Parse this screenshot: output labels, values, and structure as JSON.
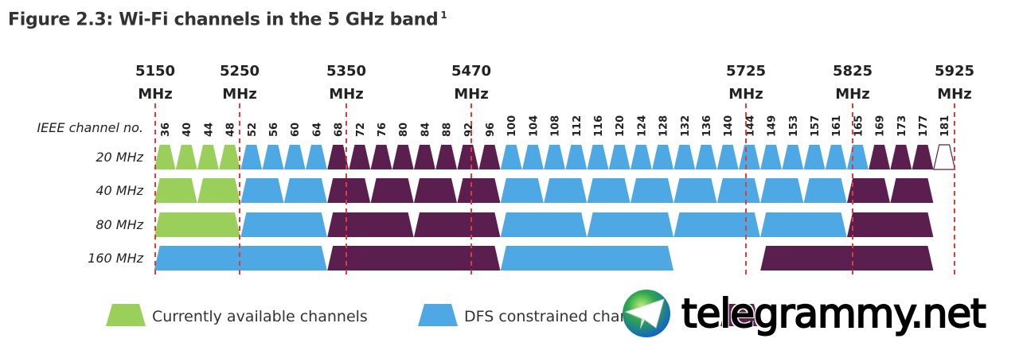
{
  "title": "Figure 2.3: Wi-Fi channels in the 5 GHz band",
  "title_footnote": "1",
  "frequency_markers": [
    {
      "value": "5150",
      "unit": "MHz"
    },
    {
      "value": "5250",
      "unit": "MHz"
    },
    {
      "value": "5350",
      "unit": "MHz"
    },
    {
      "value": "5470",
      "unit": "MHz"
    },
    {
      "value": "5725",
      "unit": "MHz"
    },
    {
      "value": "5825",
      "unit": "MHz"
    },
    {
      "value": "5925",
      "unit": "MHz"
    }
  ],
  "channel_axis_label": "IEEE channel no.",
  "channels": [
    "36",
    "40",
    "44",
    "48",
    "52",
    "56",
    "60",
    "64",
    "68",
    "72",
    "76",
    "80",
    "84",
    "88",
    "92",
    "96",
    "100",
    "104",
    "108",
    "112",
    "116",
    "120",
    "124",
    "128",
    "132",
    "136",
    "140",
    "144",
    "149",
    "153",
    "157",
    "161",
    "165",
    "169",
    "173",
    "177",
    "181"
  ],
  "rows": [
    {
      "label": "20 MHz",
      "blocks": [
        [
          36,
          36,
          "available"
        ],
        [
          40,
          40,
          "available"
        ],
        [
          44,
          44,
          "available"
        ],
        [
          48,
          48,
          "available"
        ],
        [
          52,
          52,
          "dfs"
        ],
        [
          56,
          56,
          "dfs"
        ],
        [
          60,
          60,
          "dfs"
        ],
        [
          64,
          64,
          "dfs"
        ],
        [
          68,
          68,
          "other"
        ],
        [
          72,
          72,
          "other"
        ],
        [
          76,
          76,
          "other"
        ],
        [
          80,
          80,
          "other"
        ],
        [
          84,
          84,
          "other"
        ],
        [
          88,
          88,
          "other"
        ],
        [
          92,
          92,
          "other"
        ],
        [
          96,
          96,
          "other"
        ],
        [
          100,
          100,
          "dfs"
        ],
        [
          104,
          104,
          "dfs"
        ],
        [
          108,
          108,
          "dfs"
        ],
        [
          112,
          112,
          "dfs"
        ],
        [
          116,
          116,
          "dfs"
        ],
        [
          120,
          120,
          "dfs"
        ],
        [
          124,
          124,
          "dfs"
        ],
        [
          128,
          128,
          "dfs"
        ],
        [
          132,
          132,
          "dfs"
        ],
        [
          136,
          136,
          "dfs"
        ],
        [
          140,
          140,
          "dfs"
        ],
        [
          144,
          144,
          "dfs"
        ],
        [
          149,
          149,
          "dfs"
        ],
        [
          153,
          153,
          "dfs"
        ],
        [
          157,
          157,
          "dfs"
        ],
        [
          161,
          161,
          "dfs"
        ],
        [
          165,
          165,
          "dfs"
        ],
        [
          169,
          169,
          "other"
        ],
        [
          173,
          173,
          "other"
        ],
        [
          177,
          177,
          "other"
        ],
        [
          181,
          181,
          "outline"
        ]
      ]
    },
    {
      "label": "40 MHz",
      "blocks": [
        [
          36,
          40,
          "available"
        ],
        [
          44,
          48,
          "available"
        ],
        [
          52,
          56,
          "dfs"
        ],
        [
          60,
          64,
          "dfs"
        ],
        [
          68,
          72,
          "other"
        ],
        [
          76,
          80,
          "other"
        ],
        [
          84,
          88,
          "other"
        ],
        [
          92,
          96,
          "other"
        ],
        [
          100,
          104,
          "dfs"
        ],
        [
          108,
          112,
          "dfs"
        ],
        [
          116,
          120,
          "dfs"
        ],
        [
          124,
          128,
          "dfs"
        ],
        [
          132,
          136,
          "dfs"
        ],
        [
          140,
          144,
          "dfs"
        ],
        [
          149,
          153,
          "dfs"
        ],
        [
          157,
          161,
          "dfs"
        ],
        [
          165,
          169,
          "other"
        ],
        [
          173,
          177,
          "other"
        ]
      ]
    },
    {
      "label": "80 MHz",
      "blocks": [
        [
          36,
          48,
          "available"
        ],
        [
          52,
          64,
          "dfs"
        ],
        [
          68,
          80,
          "other"
        ],
        [
          84,
          96,
          "other"
        ],
        [
          100,
          112,
          "dfs"
        ],
        [
          116,
          128,
          "dfs"
        ],
        [
          132,
          144,
          "dfs"
        ],
        [
          149,
          161,
          "dfs"
        ],
        [
          165,
          177,
          "other"
        ]
      ]
    },
    {
      "label": "160 MHz",
      "blocks": [
        [
          36,
          64,
          "dfs"
        ],
        [
          68,
          96,
          "other"
        ],
        [
          100,
          128,
          "dfs"
        ],
        [
          149,
          177,
          "other"
        ]
      ]
    }
  ],
  "legend": [
    {
      "key": "available",
      "label": "Currently available channels"
    },
    {
      "key": "dfs",
      "label": "DFS constrained channels"
    },
    {
      "key": "other",
      "label": ""
    }
  ],
  "colors": {
    "available": "#9bcf5b",
    "dfs": "#4ea8e4",
    "other": "#5b1f4f",
    "outline": "#ffffff",
    "marker": "#e03c3c"
  },
  "watermark": "telegrammy.net"
}
